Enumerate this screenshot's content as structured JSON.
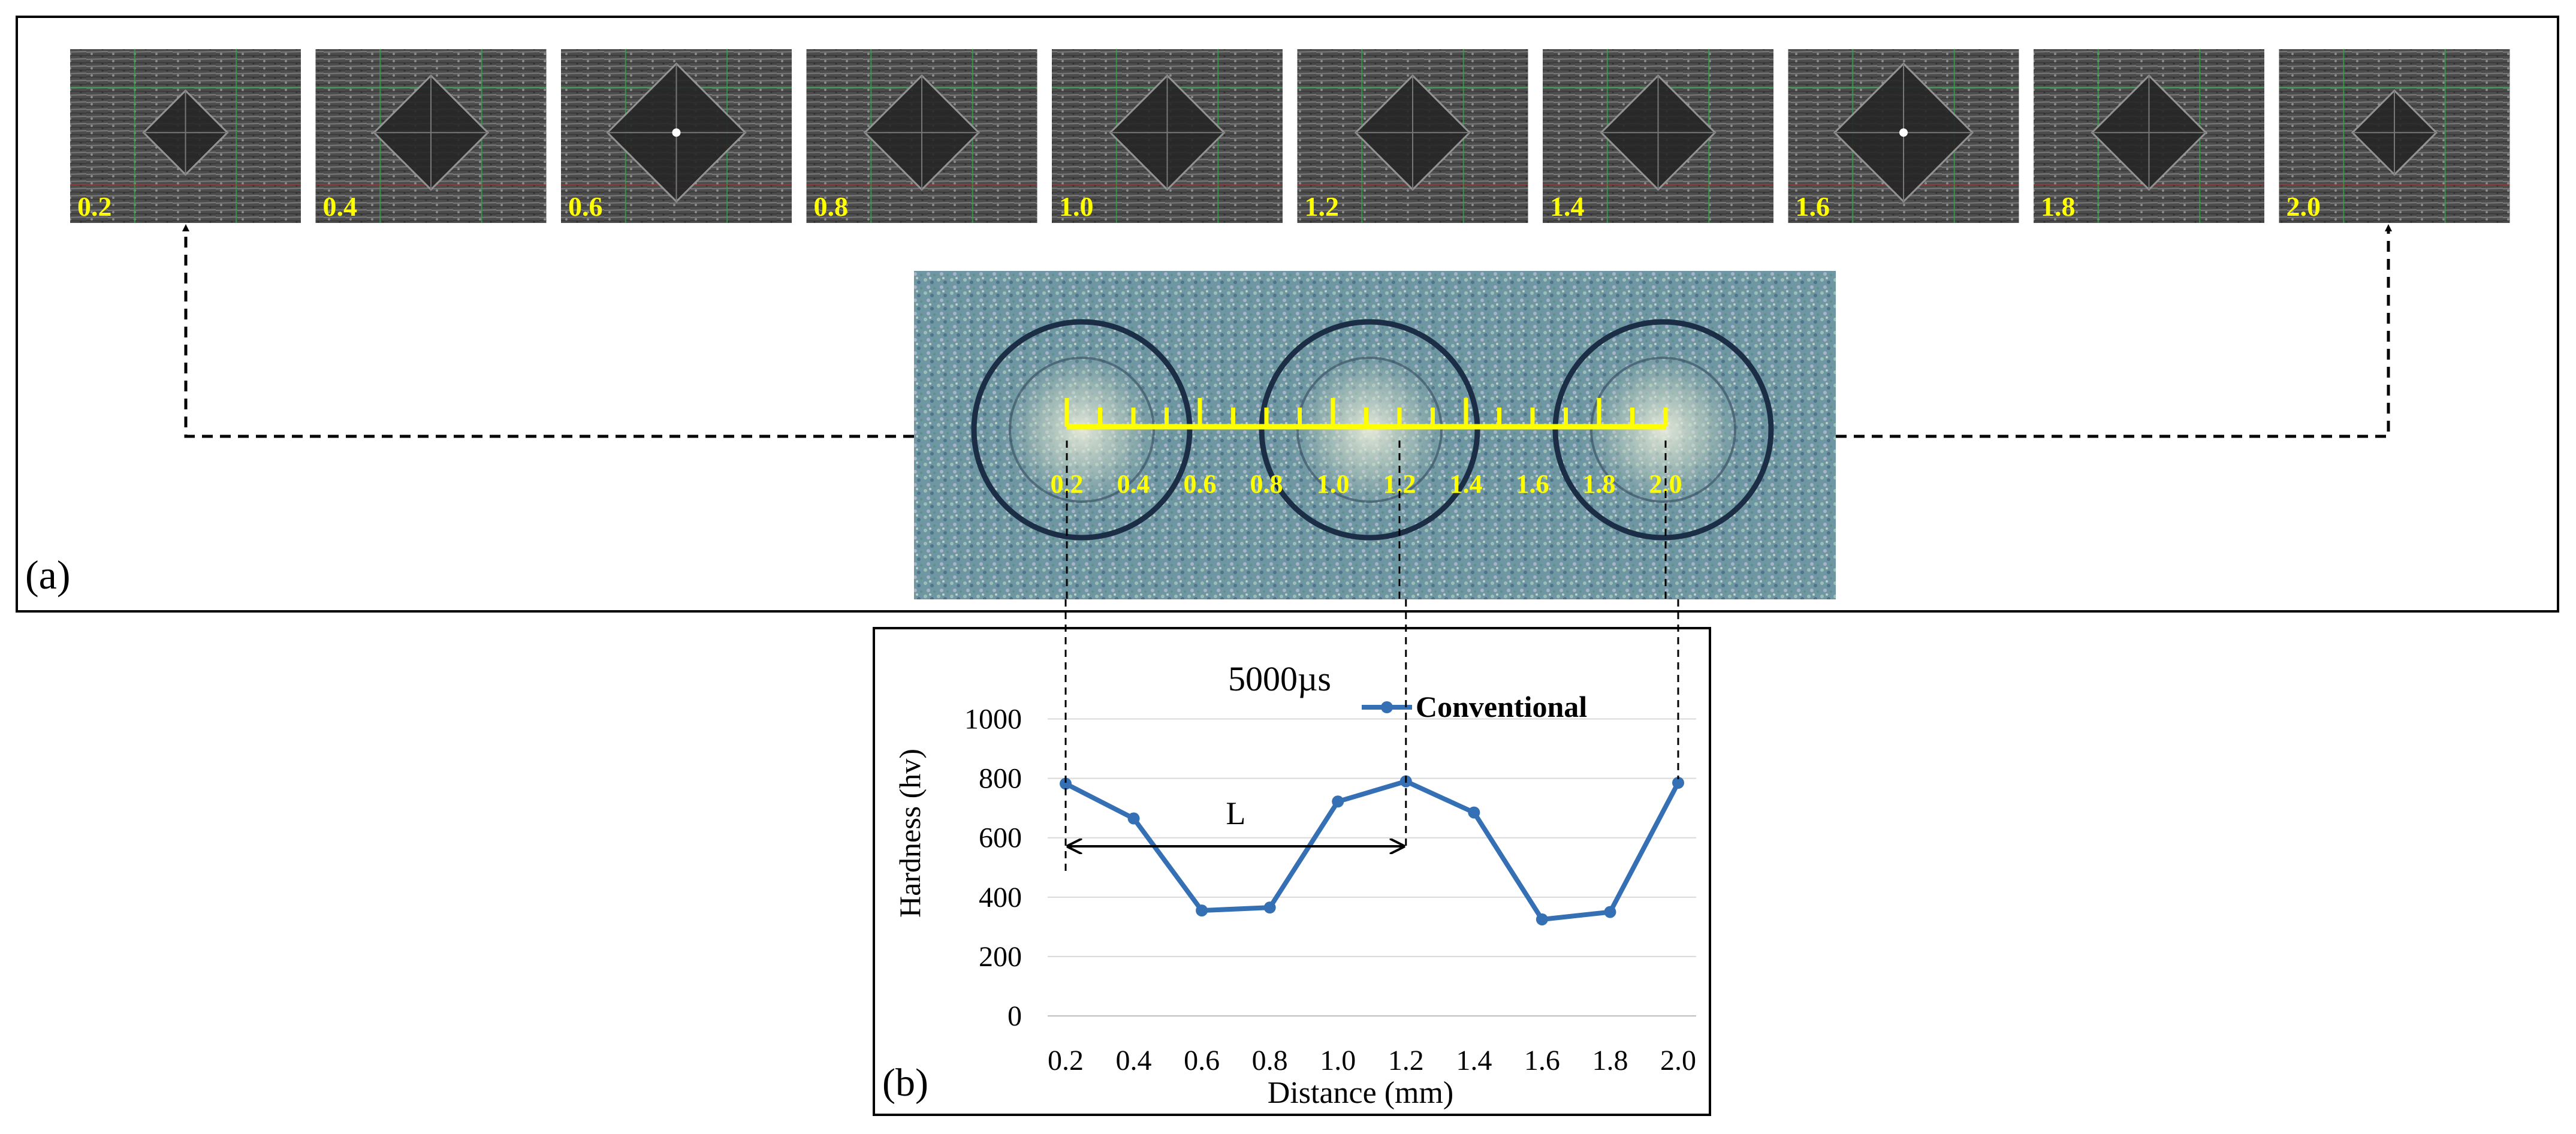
{
  "panel_a": {
    "label": "(a)",
    "micrograph_labels": [
      "0.2",
      "0.4",
      "0.6",
      "0.8",
      "1.0",
      "1.2",
      "1.4",
      "1.6",
      "1.8",
      "2.0"
    ],
    "scale_labels": [
      "0.2",
      "0.4",
      "0.6",
      "0.8",
      "1.0",
      "1.2",
      "1.4",
      "1.6",
      "1.8",
      "2.0"
    ]
  },
  "panel_b": {
    "label": "(b)",
    "span_label": "L"
  },
  "chart_data": {
    "type": "line",
    "title": "5000µs",
    "xlabel": "Distance (mm)",
    "ylabel": "Hardness (hv)",
    "categories": [
      "0.2",
      "0.4",
      "0.6",
      "0.8",
      "1.0",
      "1.2",
      "1.4",
      "1.6",
      "1.8",
      "2.0"
    ],
    "y_ticks": [
      "0",
      "200",
      "400",
      "600",
      "800",
      "1000"
    ],
    "ylim": [
      0,
      1100
    ],
    "grid": true,
    "legend_position": "top-right",
    "series": [
      {
        "name": "Conventional",
        "values": [
          782,
          665,
          355,
          365,
          722,
          790,
          685,
          325,
          350,
          785
        ]
      }
    ],
    "colors": {
      "series": "#3670b4",
      "grid": "#d9d9d9"
    }
  }
}
